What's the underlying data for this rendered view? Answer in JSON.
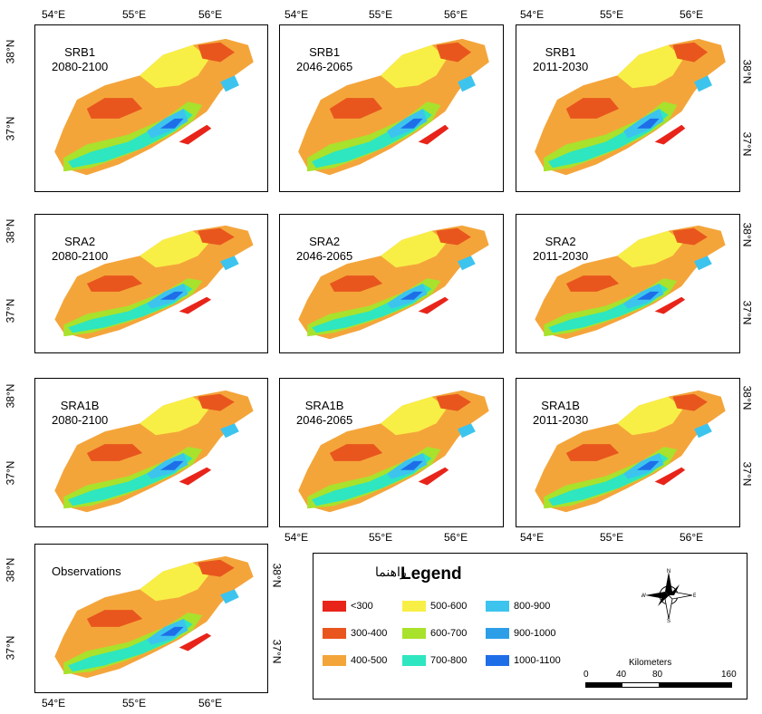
{
  "panels": [
    {
      "scenario": "SRB1",
      "period": "2080-2100"
    },
    {
      "scenario": "SRB1",
      "period": "2046-2065"
    },
    {
      "scenario": "SRB1",
      "period": "2011-2030"
    },
    {
      "scenario": "SRA2",
      "period": "2080-2100"
    },
    {
      "scenario": "SRA2",
      "period": "2046-2065"
    },
    {
      "scenario": "SRA2",
      "period": "2011-2030"
    },
    {
      "scenario": "SRA1B",
      "period": "2080-2100"
    },
    {
      "scenario": "SRA1B",
      "period": "2046-2065"
    },
    {
      "scenario": "SRA1B",
      "period": "2011-2030"
    },
    {
      "scenario": "Observations",
      "period": ""
    }
  ],
  "axes": {
    "lon_ticks": [
      "54°E",
      "55°E",
      "56°E"
    ],
    "lat_ticks": [
      "38°N",
      "37°N"
    ]
  },
  "legend": {
    "title": "Legend",
    "title_fa": "راهنما",
    "classes": [
      {
        "label": "<300",
        "color": "#e8241a"
      },
      {
        "label": "300-400",
        "color": "#e8561e"
      },
      {
        "label": "400-500",
        "color": "#f4a53a"
      },
      {
        "label": "500-600",
        "color": "#f8ef46"
      },
      {
        "label": "600-700",
        "color": "#a8e22c"
      },
      {
        "label": "700-800",
        "color": "#2ee6c0"
      },
      {
        "label": "800-900",
        "color": "#3cc4ee"
      },
      {
        "label": "900-1000",
        "color": "#2c9ee8"
      },
      {
        "label": "1000-1100",
        "color": "#1e6ee8"
      }
    ]
  },
  "compass": {
    "n": "N",
    "s": "S",
    "e": "E",
    "w": "W"
  },
  "scalebar": {
    "unit": "Kilometers",
    "ticks": [
      "0",
      "40",
      "80",
      "160"
    ]
  }
}
